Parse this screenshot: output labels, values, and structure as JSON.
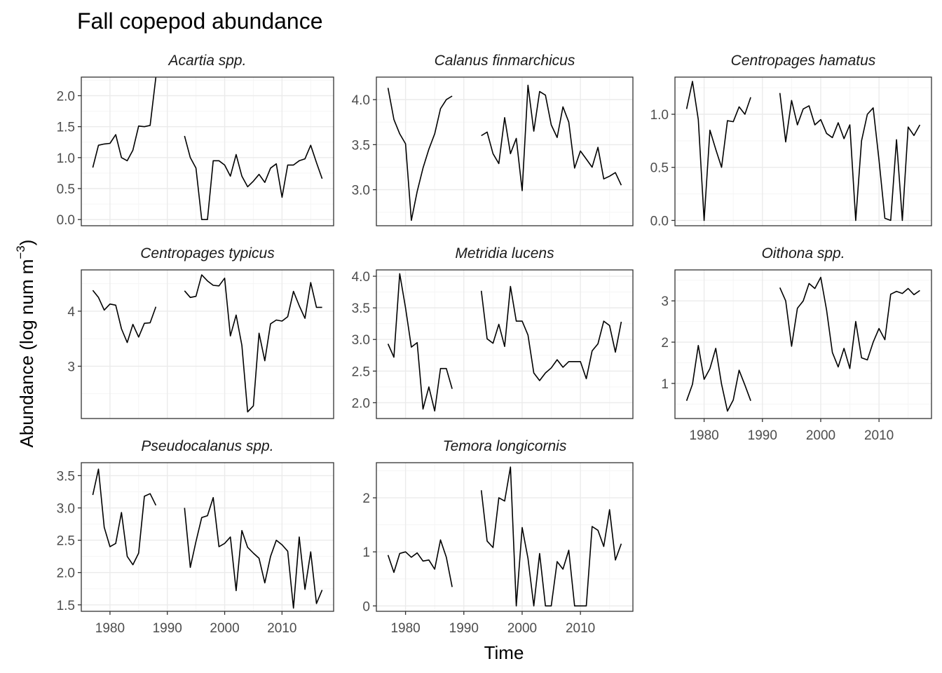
{
  "title": "Fall copepod abundance",
  "xlabel": "Time",
  "ylabel_main": "Abundance (log num m",
  "ylabel_sup": "−3",
  "ylabel_close": ")",
  "x_ticks": [
    1980,
    1990,
    2000,
    2010
  ],
  "x_range": [
    1975,
    2019
  ],
  "colors": {
    "line": "#000000",
    "panel_border": "#333333",
    "grid_major": "#ebebeb",
    "grid_minor": "#f5f5f5",
    "text": "#4d4d4d"
  },
  "chart_data": [
    {
      "type": "line",
      "name": "Acartia spp.",
      "ylim": [
        -0.1,
        2.3
      ],
      "y_ticks": [
        0.0,
        0.5,
        1.0,
        1.5,
        2.0
      ],
      "y_tick_labels": [
        "0.0",
        "0.5",
        "1.0",
        "1.5",
        "2.0"
      ],
      "x": [
        1977,
        1978,
        1979,
        1980,
        1981,
        1982,
        1983,
        1984,
        1985,
        1986,
        1987,
        1988,
        null,
        1993,
        1994,
        1995,
        1996,
        1997,
        1998,
        1999,
        2000,
        2001,
        2002,
        2003,
        2004,
        2005,
        2006,
        2007,
        2008,
        2009,
        2010,
        2011,
        2012,
        2013,
        2014,
        2015,
        2016,
        2017
      ],
      "y": [
        0.84,
        1.2,
        1.22,
        1.23,
        1.37,
        1.0,
        0.95,
        1.12,
        1.51,
        1.5,
        1.52,
        2.3,
        null,
        1.35,
        1.0,
        0.83,
        0.0,
        0.0,
        0.95,
        0.95,
        0.88,
        0.7,
        1.05,
        0.7,
        0.53,
        0.62,
        0.73,
        0.6,
        0.83,
        0.9,
        0.36,
        0.88,
        0.88,
        0.95,
        0.98,
        1.2,
        0.92,
        0.66
      ]
    },
    {
      "type": "line",
      "name": "Calanus finmarchicus",
      "ylim": [
        2.6,
        4.25
      ],
      "y_ticks": [
        3.0,
        3.5,
        4.0
      ],
      "y_tick_labels": [
        "3.0",
        "3.5",
        "4.0"
      ],
      "x": [
        1977,
        1978,
        1979,
        1980,
        1981,
        1982,
        1983,
        1984,
        1985,
        1986,
        1987,
        1988,
        null,
        1993,
        1994,
        1995,
        1996,
        1997,
        1998,
        1999,
        2000,
        2001,
        2002,
        2003,
        2004,
        2005,
        2006,
        2007,
        2008,
        2009,
        2010,
        2011,
        2012,
        2013,
        2014,
        2015,
        2016,
        2017
      ],
      "y": [
        4.13,
        3.78,
        3.62,
        3.51,
        2.66,
        2.98,
        3.24,
        3.45,
        3.62,
        3.9,
        4.0,
        4.04,
        null,
        3.6,
        3.64,
        3.4,
        3.29,
        3.8,
        3.4,
        3.57,
        2.99,
        4.16,
        3.65,
        4.09,
        4.05,
        3.72,
        3.58,
        3.92,
        3.75,
        3.24,
        3.43,
        3.34,
        3.25,
        3.47,
        3.12,
        3.15,
        3.19,
        3.05
      ]
    },
    {
      "type": "line",
      "name": "Centropages hamatus",
      "ylim": [
        -0.05,
        1.35
      ],
      "y_ticks": [
        0.0,
        0.5,
        1.0
      ],
      "y_tick_labels": [
        "0.0",
        "0.5",
        "1.0"
      ],
      "x": [
        1977,
        1978,
        1979,
        1980,
        1981,
        1982,
        1983,
        1984,
        1985,
        1986,
        1987,
        1988,
        null,
        1993,
        1994,
        1995,
        1996,
        1997,
        1998,
        1999,
        2000,
        2001,
        2002,
        2003,
        2004,
        2005,
        2006,
        2007,
        2008,
        2009,
        2010,
        2011,
        2012,
        2013,
        2014,
        2015,
        2016,
        2017
      ],
      "y": [
        1.05,
        1.31,
        0.95,
        0.0,
        0.85,
        0.67,
        0.5,
        0.94,
        0.93,
        1.07,
        1.0,
        1.16,
        null,
        1.2,
        0.74,
        1.13,
        0.9,
        1.05,
        1.08,
        0.9,
        0.95,
        0.82,
        0.78,
        0.92,
        0.77,
        0.9,
        0.0,
        0.75,
        1.0,
        1.06,
        0.57,
        0.02,
        0.0,
        0.76,
        0.0,
        0.88,
        0.8,
        0.9
      ]
    },
    {
      "type": "line",
      "name": "Centropages typicus",
      "ylim": [
        2.05,
        4.75
      ],
      "y_ticks": [
        3,
        4
      ],
      "y_tick_labels": [
        "3",
        "4"
      ],
      "x": [
        1977,
        1978,
        1979,
        1980,
        1981,
        1982,
        1983,
        1984,
        1985,
        1986,
        1987,
        1988,
        null,
        1993,
        1994,
        1995,
        1996,
        1997,
        1998,
        1999,
        2000,
        2001,
        2002,
        2003,
        2004,
        2005,
        2006,
        2007,
        2008,
        2009,
        2010,
        2011,
        2012,
        2013,
        2014,
        2015,
        2016,
        2017
      ],
      "y": [
        4.38,
        4.25,
        4.02,
        4.13,
        4.11,
        3.68,
        3.43,
        3.76,
        3.53,
        3.78,
        3.79,
        4.08,
        null,
        4.37,
        4.25,
        4.27,
        4.66,
        4.55,
        4.47,
        4.46,
        4.6,
        3.55,
        3.93,
        3.38,
        2.17,
        2.28,
        3.6,
        3.1,
        3.77,
        3.84,
        3.82,
        3.9,
        4.36,
        4.1,
        3.87,
        4.52,
        4.07,
        4.07
      ]
    },
    {
      "type": "line",
      "name": "Metridia lucens",
      "ylim": [
        1.75,
        4.1
      ],
      "y_ticks": [
        2.0,
        2.5,
        3.0,
        3.5,
        4.0
      ],
      "y_tick_labels": [
        "2.0",
        "2.5",
        "3.0",
        "3.5",
        "4.0"
      ],
      "x": [
        1977,
        1978,
        1979,
        1980,
        1981,
        1982,
        1983,
        1984,
        1985,
        1986,
        1987,
        1988,
        null,
        1993,
        1994,
        1995,
        1996,
        1997,
        1998,
        1999,
        2000,
        2001,
        2002,
        2003,
        2004,
        2005,
        2006,
        2007,
        2008,
        2009,
        2010,
        2011,
        2012,
        2013,
        2014,
        2015,
        2016,
        2017
      ],
      "y": [
        2.93,
        2.72,
        4.04,
        3.5,
        2.88,
        2.95,
        1.9,
        2.25,
        1.87,
        2.54,
        2.54,
        2.22,
        null,
        3.77,
        3.01,
        2.94,
        3.24,
        2.89,
        3.84,
        3.29,
        3.29,
        3.07,
        2.47,
        2.35,
        2.47,
        2.55,
        2.68,
        2.56,
        2.65,
        2.65,
        2.65,
        2.38,
        2.82,
        2.93,
        3.29,
        3.22,
        2.8,
        3.28
      ]
    },
    {
      "type": "line",
      "name": "Oithona spp.",
      "ylim": [
        0.15,
        3.75
      ],
      "y_ticks": [
        1,
        2,
        3
      ],
      "y_tick_labels": [
        "1",
        "2",
        "3"
      ],
      "x": [
        1977,
        1978,
        1979,
        1980,
        1981,
        1982,
        1983,
        1984,
        1985,
        1986,
        1987,
        1988,
        null,
        1993,
        1994,
        1995,
        1996,
        1997,
        1998,
        1999,
        2000,
        2001,
        2002,
        2003,
        2004,
        2005,
        2006,
        2007,
        2008,
        2009,
        2010,
        2011,
        2012,
        2013,
        2014,
        2015,
        2016,
        2017
      ],
      "y": [
        0.58,
        0.98,
        1.92,
        1.1,
        1.36,
        1.85,
        0.98,
        0.33,
        0.6,
        1.32,
        0.96,
        0.58,
        null,
        3.32,
        3.0,
        1.9,
        2.82,
        3.0,
        3.42,
        3.3,
        3.57,
        2.78,
        1.75,
        1.4,
        1.85,
        1.36,
        2.5,
        1.62,
        1.57,
        2.0,
        2.33,
        2.06,
        3.16,
        3.23,
        3.18,
        3.3,
        3.15,
        3.25
      ]
    },
    {
      "type": "line",
      "name": "Pseudocalanus spp.",
      "ylim": [
        1.4,
        3.7
      ],
      "y_ticks": [
        1.5,
        2.0,
        2.5,
        3.0,
        3.5
      ],
      "y_tick_labels": [
        "1.5",
        "2.0",
        "2.5",
        "3.0",
        "3.5"
      ],
      "x": [
        1977,
        1978,
        1979,
        1980,
        1981,
        1982,
        1983,
        1984,
        1985,
        1986,
        1987,
        1988,
        null,
        1993,
        1994,
        1995,
        1996,
        1997,
        1998,
        1999,
        2000,
        2001,
        2002,
        2003,
        2004,
        2005,
        2006,
        2007,
        2008,
        2009,
        2010,
        2011,
        2012,
        2013,
        2014,
        2015,
        2016,
        2017
      ],
      "y": [
        3.2,
        3.6,
        2.7,
        2.4,
        2.45,
        2.93,
        2.25,
        2.12,
        2.3,
        3.18,
        3.22,
        3.04,
        null,
        3.0,
        2.08,
        2.48,
        2.85,
        2.88,
        3.16,
        2.4,
        2.45,
        2.55,
        1.72,
        2.65,
        2.39,
        2.3,
        2.22,
        1.84,
        2.25,
        2.5,
        2.43,
        2.33,
        1.45,
        2.55,
        1.74,
        2.32,
        1.52,
        1.73
      ]
    },
    {
      "type": "line",
      "name": "Temora longicornis",
      "ylim": [
        -0.1,
        2.65
      ],
      "y_ticks": [
        0,
        1,
        2
      ],
      "y_tick_labels": [
        "0",
        "1",
        "2"
      ],
      "x": [
        1977,
        1978,
        1979,
        1980,
        1981,
        1982,
        1983,
        1984,
        1985,
        1986,
        1987,
        1988,
        null,
        1993,
        1994,
        1995,
        1996,
        1997,
        1998,
        1999,
        2000,
        2001,
        2002,
        2003,
        2004,
        2005,
        2006,
        2007,
        2008,
        2009,
        2010,
        2011,
        2012,
        2013,
        2014,
        2015,
        2016,
        2017
      ],
      "y": [
        0.94,
        0.62,
        0.97,
        1.0,
        0.9,
        0.98,
        0.83,
        0.85,
        0.68,
        1.22,
        0.9,
        0.35,
        null,
        2.14,
        1.2,
        1.08,
        2.0,
        1.94,
        2.57,
        0.0,
        1.45,
        0.88,
        0.0,
        0.97,
        0.0,
        0.0,
        0.82,
        0.68,
        1.03,
        0.0,
        0.0,
        0.0,
        1.47,
        1.4,
        1.1,
        1.78,
        0.85,
        1.15
      ]
    }
  ]
}
